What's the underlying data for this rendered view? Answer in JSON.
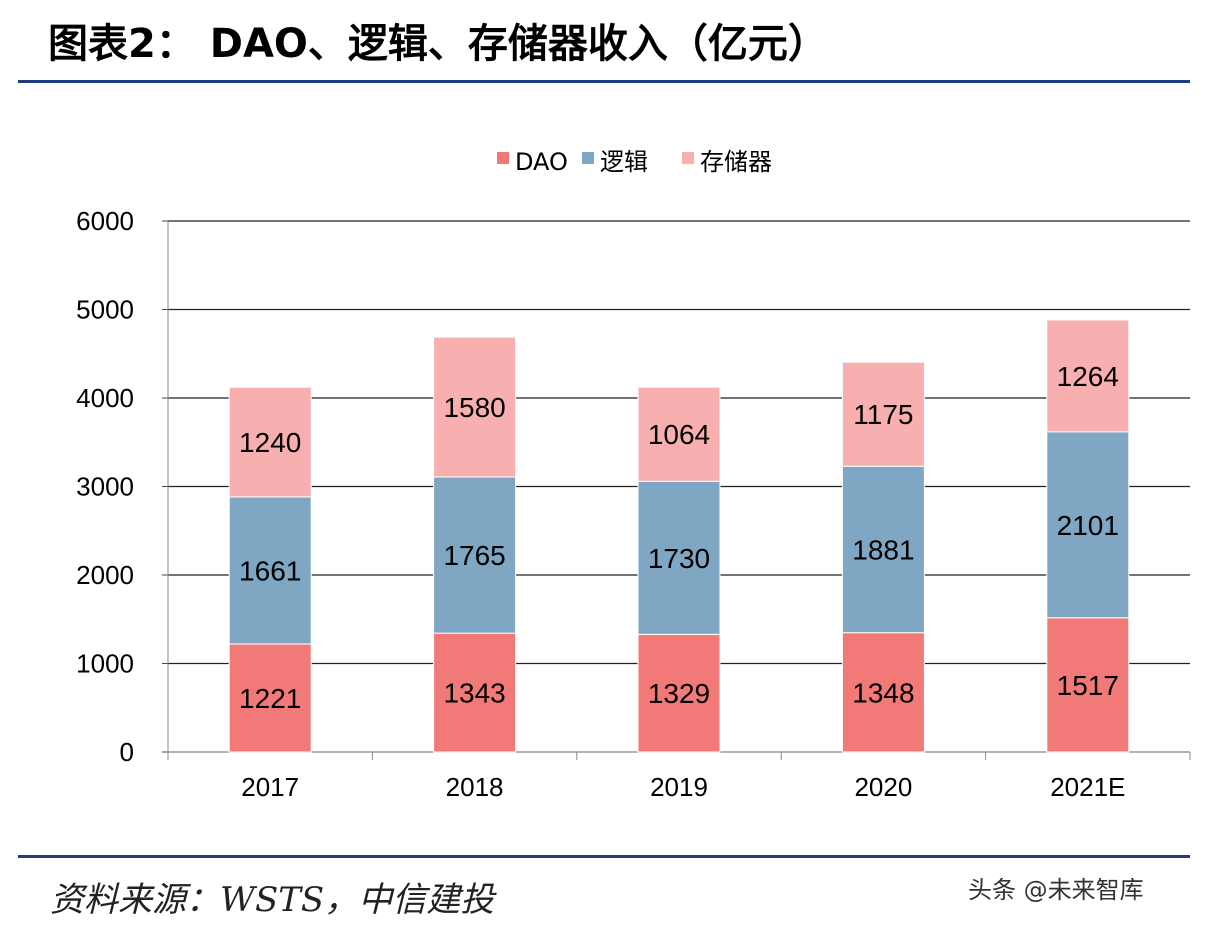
{
  "page": {
    "title": "图表2：  DAO、逻辑、存储器收入（亿元）",
    "source": "资料来源：WSTS，中信建投",
    "watermark": "头条 @未来智库"
  },
  "chart_data": {
    "type": "bar",
    "stacked": true,
    "categories": [
      "2017",
      "2018",
      "2019",
      "2020",
      "2021E"
    ],
    "series": [
      {
        "name": "DAO",
        "values": [
          1221,
          1343,
          1329,
          1348,
          1517
        ],
        "color": "#f17a78"
      },
      {
        "name": "逻辑",
        "values": [
          1661,
          1765,
          1730,
          1881,
          2101
        ],
        "color": "#7fa6c2"
      },
      {
        "name": "存储器",
        "values": [
          1240,
          1580,
          1064,
          1175,
          1264
        ],
        "color": "#f8afb0"
      }
    ],
    "ylim": [
      0,
      6000
    ],
    "yticks": [
      0,
      1000,
      2000,
      3000,
      4000,
      5000,
      6000
    ],
    "grid": true,
    "legend": "top",
    "xlabel": "",
    "ylabel": ""
  }
}
